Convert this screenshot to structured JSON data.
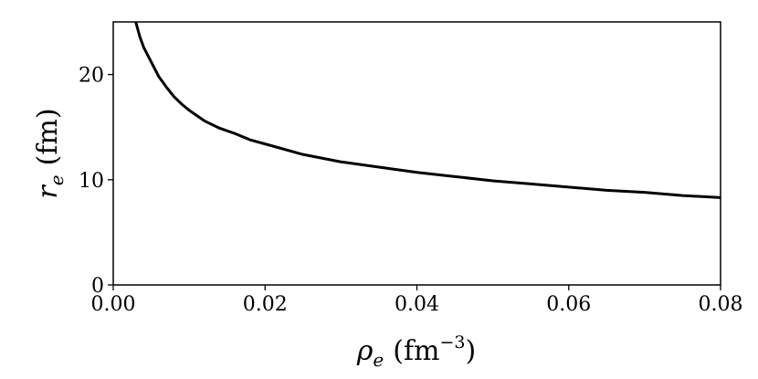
{
  "chart_data": {
    "type": "line",
    "title": "",
    "xlabel": {
      "symbol": "ρ",
      "subscript": "e",
      "unit_open": "(fm",
      "unit_power": "−3",
      "unit_close": ")"
    },
    "ylabel": {
      "symbol": "r",
      "subscript": "e",
      "unit": "(fm)"
    },
    "xlim": [
      0.0,
      0.08
    ],
    "ylim": [
      0,
      25
    ],
    "xticks": [
      0.0,
      0.02,
      0.04,
      0.06,
      0.08
    ],
    "xtick_labels": [
      "0.00",
      "0.02",
      "0.04",
      "0.06",
      "0.08"
    ],
    "yticks": [
      0,
      10,
      20
    ],
    "ytick_labels": [
      "0",
      "10",
      "20"
    ],
    "grid": false,
    "legend": "none",
    "series": [
      {
        "color": "#000000",
        "x": [
          0.0028,
          0.003,
          0.0035,
          0.004,
          0.005,
          0.006,
          0.007,
          0.008,
          0.009,
          0.01,
          0.012,
          0.014,
          0.016,
          0.018,
          0.02,
          0.025,
          0.03,
          0.035,
          0.04,
          0.045,
          0.05,
          0.055,
          0.06,
          0.065,
          0.07,
          0.075,
          0.08
        ],
        "y": [
          25.9,
          24.9,
          23.6,
          22.6,
          21.2,
          19.8,
          18.8,
          17.9,
          17.2,
          16.6,
          15.6,
          14.9,
          14.4,
          13.8,
          13.4,
          12.4,
          11.7,
          11.2,
          10.7,
          10.3,
          9.9,
          9.6,
          9.3,
          9.0,
          8.8,
          8.5,
          8.3
        ]
      }
    ]
  }
}
